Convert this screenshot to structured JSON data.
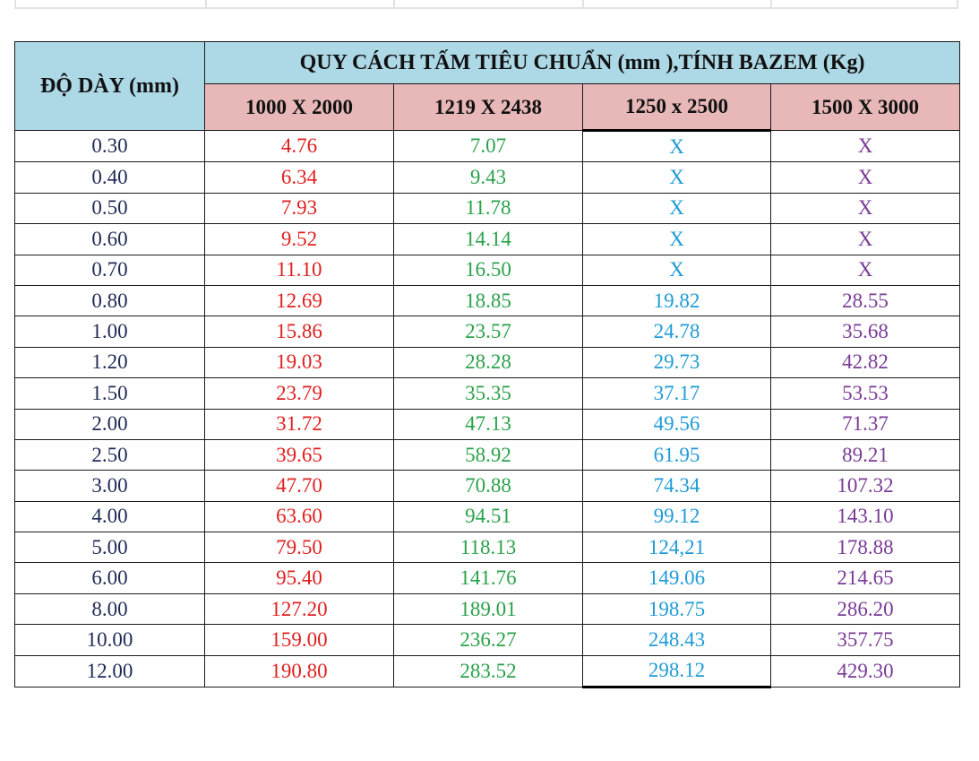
{
  "table": {
    "header": {
      "thickness_label": "ĐỘ DÀY (mm)",
      "spec_label": "QUY CÁCH TẤM TIÊU CHUẨN (mm ),TÍNH BAZEM (Kg)",
      "sizes": [
        "1000 X 2000",
        "1219 X 2438",
        "1250 x 2500",
        "1500 X 3000"
      ]
    },
    "rows": [
      {
        "thickness": "0.30",
        "w1": "4.76",
        "w2": "7.07",
        "w3": "X",
        "w4": "X"
      },
      {
        "thickness": "0.40",
        "w1": "6.34",
        "w2": "9.43",
        "w3": "X",
        "w4": "X"
      },
      {
        "thickness": "0.50",
        "w1": "7.93",
        "w2": "11.78",
        "w3": "X",
        "w4": "X"
      },
      {
        "thickness": "0.60",
        "w1": "9.52",
        "w2": "14.14",
        "w3": "X",
        "w4": "X"
      },
      {
        "thickness": "0.70",
        "w1": "11.10",
        "w2": "16.50",
        "w3": "X",
        "w4": "X"
      },
      {
        "thickness": "0.80",
        "w1": "12.69",
        "w2": "18.85",
        "w3": "19.82",
        "w4": "28.55"
      },
      {
        "thickness": "1.00",
        "w1": "15.86",
        "w2": "23.57",
        "w3": "24.78",
        "w4": "35.68"
      },
      {
        "thickness": "1.20",
        "w1": "19.03",
        "w2": "28.28",
        "w3": "29.73",
        "w4": "42.82"
      },
      {
        "thickness": "1.50",
        "w1": "23.79",
        "w2": "35.35",
        "w3": "37.17",
        "w4": "53.53"
      },
      {
        "thickness": "2.00",
        "w1": "31.72",
        "w2": "47.13",
        "w3": "49.56",
        "w4": "71.37"
      },
      {
        "thickness": "2.50",
        "w1": "39.65",
        "w2": "58.92",
        "w3": "61.95",
        "w4": "89.21"
      },
      {
        "thickness": "3.00",
        "w1": "47.70",
        "w2": "70.88",
        "w3": "74.34",
        "w4": "107.32"
      },
      {
        "thickness": "4.00",
        "w1": "63.60",
        "w2": "94.51",
        "w3": "99.12",
        "w4": "143.10"
      },
      {
        "thickness": "5.00",
        "w1": "79.50",
        "w2": "118.13",
        "w3": "124,21",
        "w4": "178.88"
      },
      {
        "thickness": "6.00",
        "w1": "95.40",
        "w2": "141.76",
        "w3": "149.06",
        "w4": "214.65"
      },
      {
        "thickness": "8.00",
        "w1": "127.20",
        "w2": "189.01",
        "w3": "198.75",
        "w4": "286.20"
      },
      {
        "thickness": "10.00",
        "w1": "159.00",
        "w2": "236.27",
        "w3": "248.43",
        "w4": "357.75"
      },
      {
        "thickness": "12.00",
        "w1": "190.80",
        "w2": "283.52",
        "w3": "298.12",
        "w4": "429.30"
      }
    ]
  },
  "colors": {
    "header_blue": "#add8e6",
    "header_pink": "#e8b8b8",
    "col1_red": "#e02020",
    "col2_green": "#2aa24a",
    "col3_cyan": "#1e9bd7",
    "col4_purple": "#7a3b96",
    "thickness_navy": "#1f2a55"
  }
}
